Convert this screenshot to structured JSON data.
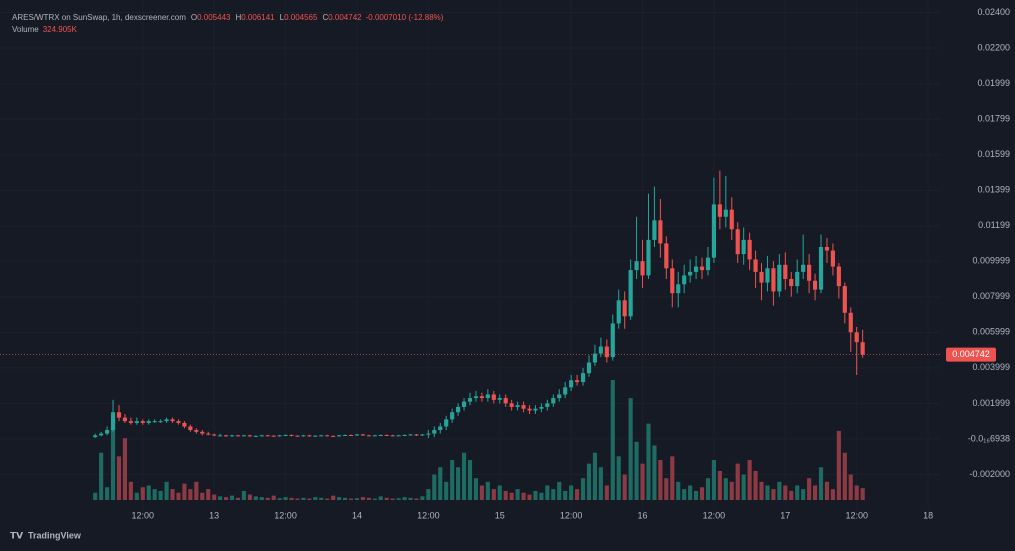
{
  "chart_data": {
    "type": "candlestick",
    "header": {
      "symbol": "ARES/WTRX on SunSwap, 1h, dexscreener.com",
      "ohlc": [
        {
          "k": "O",
          "v": "0.005443"
        },
        {
          "k": "H",
          "v": "0.006141"
        },
        {
          "k": "L",
          "v": "0.004565"
        },
        {
          "k": "C",
          "v": "0.004742"
        }
      ],
      "change": "-0.0007010 (-12.88%)",
      "volume_label": "Volume",
      "volume_value": "324.905K"
    },
    "brand": "TradingView",
    "up_color": "#26a69a",
    "down_color": "#ef5350",
    "volume_up_color": "#1d6b63",
    "volume_down_color": "#8c3a43",
    "grid": true,
    "xlim": [
      -12,
      146
    ],
    "xticks": [
      {
        "value": 12,
        "label": "12:00"
      },
      {
        "value": 24,
        "label": "13"
      },
      {
        "value": 36,
        "label": "12:00"
      },
      {
        "value": 48,
        "label": "14"
      },
      {
        "value": 60,
        "label": "12:00"
      },
      {
        "value": 72,
        "label": "15"
      },
      {
        "value": 84,
        "label": "12:00"
      },
      {
        "value": 96,
        "label": "16"
      },
      {
        "value": 108,
        "label": "12:00"
      },
      {
        "value": 120,
        "label": "17"
      },
      {
        "value": 132,
        "label": "12:00"
      },
      {
        "value": 144,
        "label": "18"
      }
    ],
    "ylim": [
      -0.004,
      0.0247
    ],
    "yticks": [
      {
        "value": 0.024,
        "label": "0.02400"
      },
      {
        "value": 0.022,
        "label": "0.02200"
      },
      0.01999,
      0.01799,
      0.01599,
      0.01399,
      0.01199,
      0.009999,
      0.007999,
      0.005999,
      0.003999,
      0.001999,
      {
        "value": -6.938e-17,
        "label": "-0.0₁₆6938"
      },
      {
        "value": -0.002,
        "label": "-0.002000"
      }
    ],
    "last_price": 0.004742,
    "x": [
      4,
      5,
      6,
      7,
      8,
      9,
      10,
      11,
      12,
      13,
      14,
      15,
      16,
      17,
      18,
      19,
      20,
      21,
      22,
      23,
      24,
      25,
      26,
      27,
      28,
      29,
      30,
      31,
      32,
      33,
      34,
      35,
      36,
      37,
      38,
      39,
      40,
      41,
      42,
      43,
      44,
      45,
      46,
      47,
      48,
      49,
      50,
      51,
      52,
      53,
      54,
      55,
      56,
      57,
      58,
      59,
      60,
      61,
      62,
      63,
      64,
      65,
      66,
      67,
      68,
      69,
      70,
      71,
      72,
      73,
      74,
      75,
      76,
      77,
      78,
      79,
      80,
      81,
      82,
      83,
      84,
      85,
      86,
      87,
      88,
      89,
      90,
      91,
      92,
      93,
      94,
      95,
      96,
      97,
      98,
      99,
      100,
      101,
      102,
      103,
      104,
      105,
      106,
      107,
      108,
      109,
      110,
      111,
      112,
      113,
      114,
      115,
      116,
      117,
      118,
      119,
      120,
      121,
      122,
      123,
      124,
      125,
      126,
      127,
      128,
      129,
      130,
      131,
      132,
      133
    ],
    "open": [
      0.0001,
      0.0002,
      0.0003,
      0.0005,
      0.0015,
      0.0012,
      0.001,
      0.0009,
      0.001,
      0.0009,
      0.001,
      0.001,
      0.001,
      0.0011,
      0.001,
      0.0009,
      0.0007,
      0.0005,
      0.0004,
      0.0003,
      0.00025,
      0.0002,
      0.0002,
      0.00015,
      0.0002,
      0.00018,
      0.0002,
      0.00015,
      0.00017,
      0.0002,
      0.00018,
      0.00016,
      0.0002,
      0.00022,
      0.00018,
      0.00016,
      0.0002,
      0.00015,
      0.00018,
      0.0002,
      0.00017,
      0.00015,
      0.0002,
      0.00022,
      0.0002,
      0.00025,
      0.0002,
      0.00018,
      0.0002,
      0.00022,
      0.0002,
      0.00018,
      0.0002,
      0.00022,
      0.00025,
      0.0002,
      0.00025,
      0.0003,
      0.0005,
      0.0007,
      0.0011,
      0.0015,
      0.0018,
      0.0021,
      0.0023,
      0.0024,
      0.0023,
      0.0025,
      0.0022,
      0.0023,
      0.002,
      0.0018,
      0.0019,
      0.0017,
      0.0016,
      0.0017,
      0.0018,
      0.002,
      0.0023,
      0.0025,
      0.0029,
      0.0033,
      0.0032,
      0.0037,
      0.0043,
      0.0048,
      0.0052,
      0.0046,
      0.0065,
      0.0078,
      0.0069,
      0.0095,
      0.01,
      0.0092,
      0.0112,
      0.0123,
      0.011,
      0.0096,
      0.0082,
      0.0087,
      0.0092,
      0.0094,
      0.0097,
      0.0095,
      0.0102,
      0.0132,
      0.0125,
      0.0129,
      0.0118,
      0.0104,
      0.0112,
      0.0101,
      0.0094,
      0.0088,
      0.0096,
      0.0083,
      0.0098,
      0.009,
      0.0086,
      0.0094,
      0.0098,
      0.0089,
      0.0084,
      0.0108,
      0.0106,
      0.0097,
      0.0086,
      0.0071,
      0.006,
      0.005443
    ],
    "high": [
      0.0003,
      0.0004,
      0.0007,
      0.0022,
      0.0019,
      0.0014,
      0.0012,
      0.0012,
      0.0011,
      0.0011,
      0.0011,
      0.0011,
      0.0012,
      0.0012,
      0.0011,
      0.001,
      0.0008,
      0.0006,
      0.0005,
      0.0004,
      0.0003,
      0.0003,
      0.00023,
      0.00023,
      0.00023,
      0.00023,
      0.00023,
      0.0002,
      0.00023,
      0.00023,
      0.00021,
      0.00023,
      0.00025,
      0.00025,
      0.00021,
      0.00023,
      0.00023,
      0.00021,
      0.00023,
      0.00023,
      0.0002,
      0.00023,
      0.00025,
      0.00025,
      0.00028,
      0.00028,
      0.00023,
      0.00023,
      0.00025,
      0.00025,
      0.00023,
      0.00023,
      0.00025,
      0.00028,
      0.00028,
      0.00028,
      0.0005,
      0.0007,
      0.0009,
      0.0013,
      0.0017,
      0.002,
      0.0023,
      0.0026,
      0.0027,
      0.0026,
      0.0028,
      0.0027,
      0.0025,
      0.0025,
      0.0022,
      0.0021,
      0.0021,
      0.0019,
      0.0019,
      0.002,
      0.0022,
      0.0025,
      0.0028,
      0.0032,
      0.0036,
      0.0036,
      0.004,
      0.0047,
      0.0053,
      0.0057,
      0.0056,
      0.007,
      0.0084,
      0.0083,
      0.0101,
      0.0125,
      0.0112,
      0.0138,
      0.0142,
      0.0135,
      0.0114,
      0.0101,
      0.0094,
      0.0098,
      0.0101,
      0.0103,
      0.0102,
      0.0108,
      0.0147,
      0.0151,
      0.0148,
      0.0136,
      0.0122,
      0.0119,
      0.0116,
      0.0106,
      0.0099,
      0.0103,
      0.01,
      0.0104,
      0.0105,
      0.0094,
      0.0101,
      0.0115,
      0.0104,
      0.0093,
      0.0115,
      0.0113,
      0.011,
      0.0099,
      0.0088,
      0.0074,
      0.0063,
      0.006141
    ],
    "low": [
      5e-05,
      0.00015,
      0.0002,
      0.0004,
      0.001,
      0.0009,
      0.0008,
      0.0008,
      0.0008,
      0.0008,
      0.0009,
      0.0009,
      0.0009,
      0.0009,
      0.0008,
      0.0006,
      0.0004,
      0.0003,
      0.0002,
      0.0002,
      0.00015,
      0.00015,
      0.00012,
      0.00012,
      0.00015,
      0.00015,
      0.00012,
      0.00012,
      0.00014,
      0.00015,
      0.00013,
      0.00013,
      0.00017,
      0.00015,
      0.00013,
      0.00013,
      0.00012,
      0.00012,
      0.00015,
      0.00014,
      0.00012,
      0.00012,
      0.00017,
      0.00017,
      0.00017,
      0.00017,
      0.00015,
      0.00015,
      0.00017,
      0.00017,
      0.00015,
      0.00015,
      0.00017,
      0.00019,
      0.00017,
      0.00017,
      5e-05,
      0.0001,
      0.0003,
      0.0005,
      0.0009,
      0.0013,
      0.0016,
      0.0019,
      0.0021,
      0.0021,
      0.0021,
      0.002,
      0.002,
      0.0018,
      0.0016,
      0.0016,
      0.0015,
      0.0014,
      0.0014,
      0.0015,
      0.0016,
      0.0018,
      0.0021,
      0.0023,
      0.0027,
      0.003,
      0.003,
      0.0035,
      0.0041,
      0.0046,
      0.0043,
      0.0044,
      0.0062,
      0.0062,
      0.0067,
      0.009,
      0.0085,
      0.009,
      0.0108,
      0.0102,
      0.009,
      0.0074,
      0.0074,
      0.0082,
      0.0088,
      0.009,
      0.009,
      0.0092,
      0.0099,
      0.0118,
      0.0119,
      0.0112,
      0.0099,
      0.0098,
      0.0095,
      0.0085,
      0.0078,
      0.0083,
      0.0075,
      0.008,
      0.0084,
      0.008,
      0.0082,
      0.009,
      0.0082,
      0.0078,
      0.0082,
      0.0099,
      0.0092,
      0.0079,
      0.0065,
      0.0049,
      0.0036,
      0.004565
    ],
    "close": [
      0.0002,
      0.0003,
      0.0005,
      0.0015,
      0.0012,
      0.001,
      0.0009,
      0.001,
      0.0009,
      0.001,
      0.001,
      0.001,
      0.0011,
      0.001,
      0.0009,
      0.0007,
      0.0005,
      0.0004,
      0.0003,
      0.00025,
      0.0002,
      0.0002,
      0.00015,
      0.0002,
      0.00018,
      0.0002,
      0.00015,
      0.00017,
      0.0002,
      0.00018,
      0.00016,
      0.0002,
      0.00022,
      0.00018,
      0.00016,
      0.0002,
      0.00015,
      0.00018,
      0.0002,
      0.00017,
      0.00015,
      0.0002,
      0.00022,
      0.0002,
      0.00025,
      0.0002,
      0.00018,
      0.0002,
      0.00022,
      0.0002,
      0.00018,
      0.0002,
      0.00022,
      0.00025,
      0.0002,
      0.00025,
      0.0003,
      0.0005,
      0.0007,
      0.0011,
      0.0015,
      0.0018,
      0.0021,
      0.0023,
      0.0024,
      0.0023,
      0.0025,
      0.0022,
      0.0023,
      0.002,
      0.0018,
      0.0019,
      0.0017,
      0.0016,
      0.0017,
      0.0018,
      0.002,
      0.0023,
      0.0025,
      0.0029,
      0.0033,
      0.0032,
      0.0037,
      0.0043,
      0.0048,
      0.0052,
      0.0046,
      0.0065,
      0.0078,
      0.0069,
      0.0095,
      0.01,
      0.0092,
      0.0112,
      0.0123,
      0.011,
      0.0096,
      0.0082,
      0.0087,
      0.0092,
      0.0094,
      0.0097,
      0.0095,
      0.0102,
      0.0132,
      0.0125,
      0.0129,
      0.0118,
      0.0104,
      0.0112,
      0.0101,
      0.0094,
      0.0088,
      0.0096,
      0.0083,
      0.0098,
      0.009,
      0.0086,
      0.0094,
      0.0098,
      0.0089,
      0.0084,
      0.0108,
      0.0106,
      0.0097,
      0.0086,
      0.0071,
      0.006,
      0.005443,
      0.004742
    ],
    "volume": [
      200,
      1300,
      350,
      2000,
      1200,
      1700,
      500,
      200,
      350,
      400,
      300,
      250,
      500,
      300,
      200,
      450,
      300,
      500,
      200,
      300,
      150,
      100,
      80,
      120,
      60,
      250,
      150,
      100,
      80,
      60,
      120,
      50,
      80,
      60,
      40,
      60,
      40,
      80,
      60,
      40,
      120,
      80,
      60,
      40,
      50,
      80,
      60,
      40,
      100,
      60,
      40,
      50,
      80,
      60,
      40,
      100,
      300,
      700,
      900,
      500,
      1100,
      900,
      1300,
      1100,
      600,
      400,
      500,
      300,
      400,
      250,
      200,
      300,
      200,
      150,
      250,
      200,
      400,
      300,
      500,
      250,
      400,
      300,
      600,
      1000,
      1300,
      900,
      400,
      3300,
      1200,
      700,
      2800,
      1600,
      1000,
      2100,
      1500,
      1100,
      600,
      1200,
      500,
      300,
      400,
      250,
      350,
      600,
      1100,
      800,
      600,
      500,
      1000,
      700,
      1100,
      800,
      500,
      400,
      300,
      500,
      400,
      250,
      400,
      300,
      600,
      400,
      900,
      500,
      300,
      1900,
      1300,
      700,
      400,
      324.905
    ]
  }
}
